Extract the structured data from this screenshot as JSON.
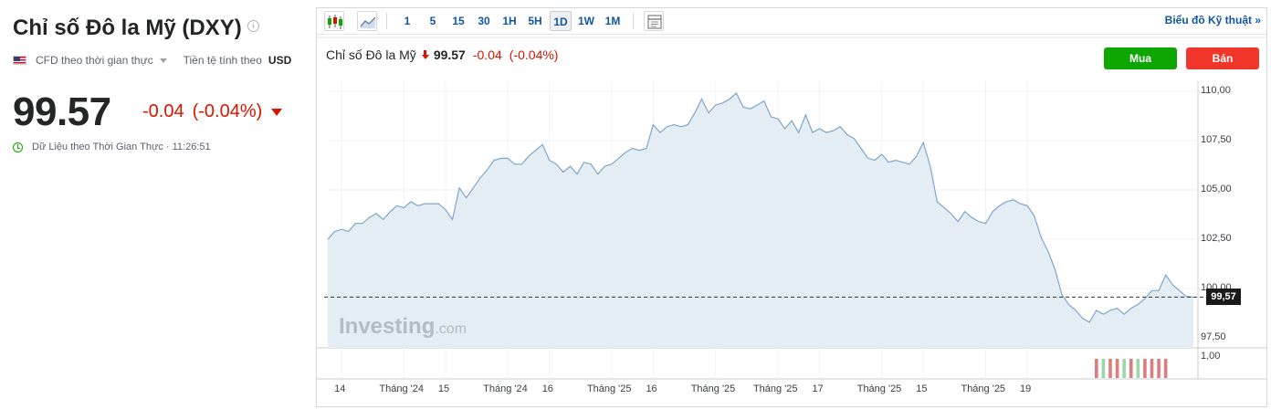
{
  "instrument": {
    "title": "Chỉ số Đô la Mỹ (DXY)",
    "info_icon": "info-icon",
    "quote_type": "CFD theo thời gian thực",
    "currency_label": "Tiền tệ tính theo",
    "currency": "USD",
    "price": "99.57",
    "change": "-0.04",
    "change_pct": "(-0.04%)",
    "realtime_label": "Dữ Liệu theo Thời Gian Thực · 11:26:51",
    "colors": {
      "down": "#d91400",
      "clock": "#0ea600"
    }
  },
  "toolbar": {
    "timeframes": [
      "1",
      "5",
      "15",
      "30",
      "1H",
      "5H",
      "1D",
      "1W",
      "1M"
    ],
    "active_timeframe": "1D",
    "tech_link": "Biểu đồ Kỹ thuật »"
  },
  "chart_header": {
    "title": "Chỉ số Đô la Mỹ",
    "price": "99.57",
    "change": "-0.04",
    "change_pct": "(-0.04%)",
    "buy_label": "Mua",
    "sell_label": "Bán",
    "watermark": "Investing",
    "watermark_suffix": ".com",
    "colors": {
      "buy": "#0ea600",
      "sell": "#f0352b",
      "line": "#7ea6cc",
      "fill": "#e4ecf4"
    }
  },
  "chart_data": {
    "type": "area",
    "title": "",
    "xlabel": "",
    "ylabel": "",
    "ylim": [
      97.0,
      110.5
    ],
    "y_ticks": [
      "110,00",
      "107,50",
      "105,00",
      "102,50",
      "100,00",
      "97,50"
    ],
    "y_tick_values": [
      110,
      107.5,
      105,
      102.5,
      100,
      97.5
    ],
    "x_ticks": [
      "14",
      "Tháng '24",
      "15",
      "Tháng '24",
      "16",
      "Tháng '25",
      "16",
      "Tháng '25",
      "Tháng '25",
      "17",
      "Tháng '25",
      "15",
      "Tháng '25",
      "19"
    ],
    "x_tick_index": [
      2,
      11,
      17,
      26,
      32,
      41,
      47,
      56,
      65,
      71,
      80,
      86,
      95,
      101
    ],
    "last_price_label": "99,57",
    "last_price": 99.57,
    "grid": true,
    "series": [
      {
        "values": [
          102.5,
          102.9,
          103.0,
          102.9,
          103.3,
          103.3,
          103.6,
          103.8,
          103.5,
          103.9,
          104.2,
          104.1,
          104.4,
          104.2,
          104.3,
          104.3,
          104.3,
          104.0,
          103.5,
          105.1,
          104.6,
          105.1,
          105.6,
          106.0,
          106.5,
          106.6,
          106.6,
          106.3,
          106.3,
          106.7,
          107.0,
          107.3,
          106.5,
          106.3,
          105.9,
          106.2,
          105.8,
          106.4,
          106.3,
          105.8,
          106.2,
          106.3,
          106.6,
          106.9,
          107.1,
          107.0,
          107.1,
          108.3,
          107.9,
          108.2,
          108.3,
          108.2,
          108.3,
          108.9,
          109.6,
          108.9,
          109.3,
          109.4,
          109.6,
          109.9,
          109.2,
          109.1,
          109.3,
          109.5,
          108.7,
          108.6,
          108.1,
          108.5,
          107.9,
          108.8,
          107.9,
          108.1,
          107.9,
          108.0,
          108.2,
          107.8,
          107.6,
          107.1,
          106.6,
          106.5,
          106.8,
          106.4,
          106.5,
          106.4,
          106.3,
          106.7,
          107.4,
          106.2,
          104.4,
          104.1,
          103.8,
          103.4,
          103.9,
          103.6,
          103.4,
          103.3,
          103.9,
          104.2,
          104.4,
          104.5,
          104.3,
          104.2,
          103.7,
          102.6,
          101.9,
          101.0,
          99.7,
          99.2,
          98.9,
          98.5,
          98.3,
          98.9,
          98.7,
          98.9,
          99.0,
          98.7,
          99.0,
          99.2,
          99.5,
          99.9,
          99.9,
          100.7,
          100.2,
          99.9,
          99.6,
          99.57
        ]
      }
    ],
    "volume": [
      1,
      1,
      1,
      1,
      1,
      1,
      1,
      1,
      1,
      1,
      1
    ]
  }
}
